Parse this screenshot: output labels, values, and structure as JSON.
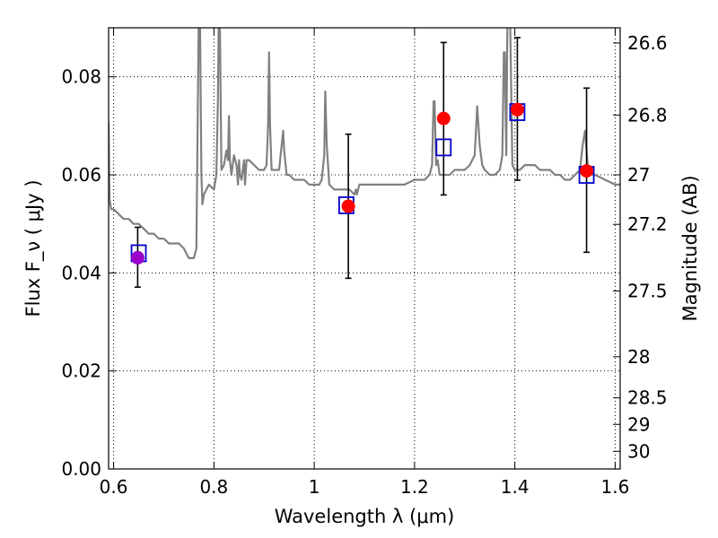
{
  "chart_data": {
    "type": "scatter",
    "xlabel": "Wavelength  λ (μm)",
    "ylabel": "Flux  F_ν  ( μJy )",
    "ylabel_right": "Magnitude (AB)",
    "xlim": [
      0.59,
      1.61
    ],
    "ylim": [
      0.0,
      0.09
    ],
    "grid": true,
    "x_ticks": [
      {
        "value": 0.6,
        "label": "0.6"
      },
      {
        "value": 0.8,
        "label": "0.8"
      },
      {
        "value": 1.0,
        "label": "1"
      },
      {
        "value": 1.2,
        "label": "1.2"
      },
      {
        "value": 1.4,
        "label": "1.4"
      },
      {
        "value": 1.6,
        "label": "1.6"
      }
    ],
    "y_ticks": [
      {
        "value": 0.0,
        "label": "0.00"
      },
      {
        "value": 0.02,
        "label": "0.02"
      },
      {
        "value": 0.04,
        "label": "0.04"
      },
      {
        "value": 0.06,
        "label": "0.06"
      },
      {
        "value": 0.08,
        "label": "0.08"
      }
    ],
    "mag_ticks": [
      {
        "flux": 0.0869,
        "label": "26.6"
      },
      {
        "flux": 0.0722,
        "label": "26.8"
      },
      {
        "flux": 0.06,
        "label": "27"
      },
      {
        "flux": 0.0499,
        "label": "27.2"
      },
      {
        "flux": 0.0363,
        "label": "27.5"
      },
      {
        "flux": 0.0229,
        "label": "28"
      },
      {
        "flux": 0.0145,
        "label": "28.5"
      },
      {
        "flux": 0.0091,
        "label": "29"
      },
      {
        "flux": 0.0036,
        "label": "30"
      }
    ],
    "observed": {
      "x": [
        0.648,
        1.068,
        1.258,
        1.405,
        1.543
      ],
      "y": [
        0.0431,
        0.0536,
        0.0715,
        0.0733,
        0.0608
      ],
      "yerr_low": [
        0.0371,
        0.0389,
        0.0559,
        0.0589,
        0.0442
      ],
      "yerr_high": [
        0.0493,
        0.0683,
        0.087,
        0.088,
        0.0777
      ],
      "colors": [
        "#9900cc",
        "#ff0000",
        "#ff0000",
        "#ff0000",
        "#ff0000"
      ]
    },
    "model_photometry": {
      "x": [
        0.65,
        1.064,
        1.258,
        1.405,
        1.543
      ],
      "y": [
        0.044,
        0.0538,
        0.0656,
        0.0728,
        0.06
      ],
      "color": "#0000cc"
    },
    "model_spectrum": {
      "color": "#808080",
      "x": [
        0.59,
        0.592,
        0.595,
        0.6,
        0.61,
        0.62,
        0.63,
        0.64,
        0.65,
        0.66,
        0.67,
        0.68,
        0.69,
        0.7,
        0.71,
        0.72,
        0.73,
        0.74,
        0.75,
        0.755,
        0.76,
        0.765,
        0.77,
        0.772,
        0.775,
        0.777,
        0.78,
        0.79,
        0.8,
        0.805,
        0.808,
        0.81,
        0.812,
        0.815,
        0.82,
        0.825,
        0.828,
        0.83,
        0.832,
        0.835,
        0.84,
        0.845,
        0.848,
        0.85,
        0.852,
        0.855,
        0.86,
        0.862,
        0.865,
        0.87,
        0.88,
        0.89,
        0.9,
        0.905,
        0.908,
        0.91,
        0.912,
        0.915,
        0.92,
        0.93,
        0.935,
        0.938,
        0.94,
        0.945,
        0.95,
        0.96,
        0.97,
        0.98,
        0.99,
        1.0,
        1.01,
        1.015,
        1.02,
        1.022,
        1.025,
        1.03,
        1.04,
        1.05,
        1.06,
        1.07,
        1.08,
        1.083,
        1.085,
        1.09,
        1.1,
        1.12,
        1.14,
        1.16,
        1.18,
        1.2,
        1.22,
        1.23,
        1.235,
        1.238,
        1.24,
        1.243,
        1.246,
        1.25,
        1.26,
        1.27,
        1.28,
        1.29,
        1.3,
        1.31,
        1.32,
        1.325,
        1.33,
        1.335,
        1.34,
        1.35,
        1.36,
        1.37,
        1.375,
        1.378,
        1.38,
        1.383,
        1.385,
        1.39,
        1.395,
        1.4,
        1.41,
        1.42,
        1.43,
        1.44,
        1.45,
        1.46,
        1.47,
        1.48,
        1.49,
        1.5,
        1.51,
        1.52,
        1.53,
        1.535,
        1.54,
        1.545,
        1.55,
        1.555,
        1.56,
        1.58,
        1.6,
        1.61
      ],
      "y": [
        0.071,
        0.055,
        0.053,
        0.053,
        0.052,
        0.051,
        0.051,
        0.05,
        0.05,
        0.049,
        0.048,
        0.048,
        0.047,
        0.047,
        0.046,
        0.046,
        0.046,
        0.045,
        0.043,
        0.043,
        0.043,
        0.045,
        0.095,
        0.095,
        0.06,
        0.054,
        0.056,
        0.058,
        0.057,
        0.06,
        0.075,
        0.095,
        0.089,
        0.061,
        0.062,
        0.065,
        0.063,
        0.072,
        0.063,
        0.06,
        0.064,
        0.062,
        0.058,
        0.063,
        0.06,
        0.059,
        0.063,
        0.058,
        0.063,
        0.063,
        0.062,
        0.061,
        0.061,
        0.062,
        0.07,
        0.085,
        0.07,
        0.061,
        0.061,
        0.061,
        0.066,
        0.069,
        0.065,
        0.06,
        0.06,
        0.059,
        0.059,
        0.059,
        0.058,
        0.058,
        0.058,
        0.059,
        0.064,
        0.077,
        0.066,
        0.058,
        0.057,
        0.057,
        0.057,
        0.057,
        0.056,
        0.057,
        0.056,
        0.058,
        0.058,
        0.058,
        0.058,
        0.058,
        0.058,
        0.059,
        0.059,
        0.06,
        0.062,
        0.075,
        0.075,
        0.062,
        0.063,
        0.06,
        0.06,
        0.06,
        0.061,
        0.061,
        0.061,
        0.062,
        0.064,
        0.074,
        0.066,
        0.062,
        0.061,
        0.06,
        0.06,
        0.061,
        0.064,
        0.085,
        0.085,
        0.064,
        0.09,
        0.095,
        0.062,
        0.061,
        0.061,
        0.062,
        0.062,
        0.062,
        0.061,
        0.061,
        0.061,
        0.06,
        0.06,
        0.059,
        0.059,
        0.06,
        0.061,
        0.066,
        0.069,
        0.062,
        0.061,
        0.06,
        0.06,
        0.059,
        0.058,
        0.058
      ]
    }
  }
}
